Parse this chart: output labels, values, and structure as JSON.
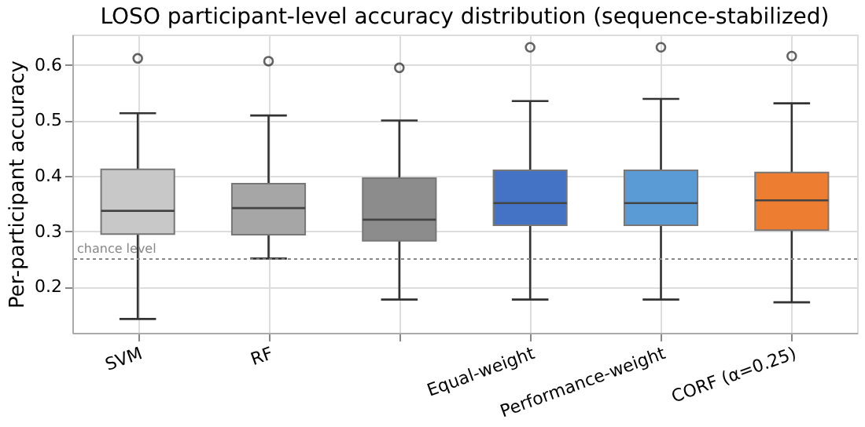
{
  "chart_data": {
    "type": "box",
    "title": "LOSO participant-level accuracy distribution (sequence-stabilized)",
    "ylabel": "Per-participant accuracy",
    "categories": [
      "SVM",
      "RF",
      null,
      "Equal-weight",
      "Performance-weight",
      "CORF (α=0.25)"
    ],
    "colors": [
      "#c8c8c8",
      "#a6a6a6",
      "#8c8c8c",
      "#4472c4",
      "#5b9bd5",
      "#ed7d31"
    ],
    "boxes": [
      {
        "low": 0.142,
        "q1": 0.295,
        "median": 0.337,
        "q3": 0.412,
        "high": 0.513,
        "outliers": [
          0.612
        ]
      },
      {
        "low": 0.251,
        "q1": 0.294,
        "median": 0.342,
        "q3": 0.386,
        "high": 0.509,
        "outliers": [
          0.607
        ]
      },
      {
        "low": 0.177,
        "q1": 0.283,
        "median": 0.321,
        "q3": 0.396,
        "high": 0.5,
        "outliers": [
          0.595
        ]
      },
      {
        "low": 0.177,
        "q1": 0.311,
        "median": 0.351,
        "q3": 0.41,
        "high": 0.535,
        "outliers": [
          0.632
        ]
      },
      {
        "low": 0.177,
        "q1": 0.311,
        "median": 0.351,
        "q3": 0.41,
        "high": 0.539,
        "outliers": [
          0.632
        ]
      },
      {
        "low": 0.172,
        "q1": 0.302,
        "median": 0.356,
        "q3": 0.406,
        "high": 0.531,
        "outliers": [
          0.616
        ]
      }
    ],
    "ylim": [
      0.117,
      0.655
    ],
    "yticks": [
      0.2,
      0.3,
      0.4,
      0.5,
      0.6
    ],
    "ref_lines": [
      {
        "axis": "y",
        "value": 0.25,
        "label": "chance level",
        "color": "#888888",
        "line_style": "dotted"
      }
    ],
    "grid": true,
    "legend": false
  }
}
